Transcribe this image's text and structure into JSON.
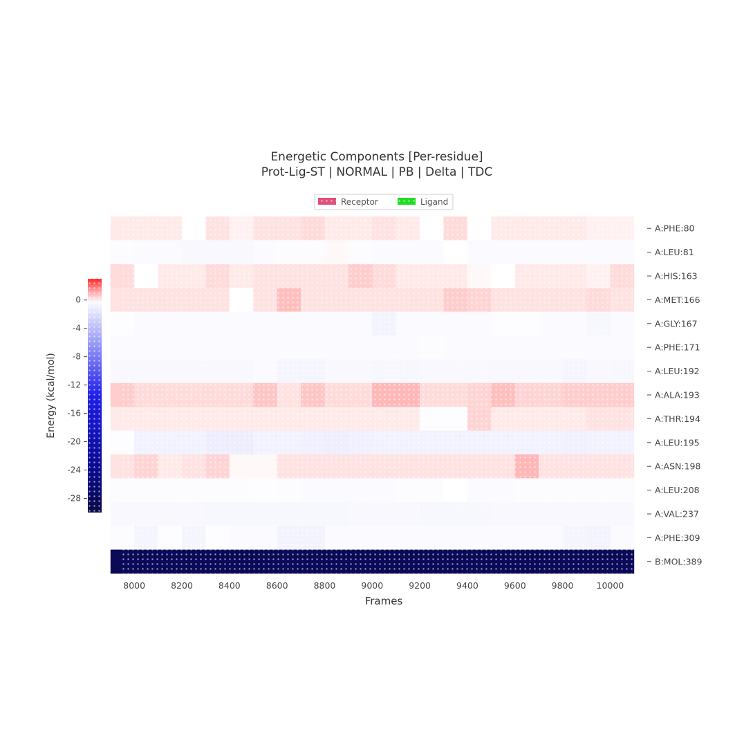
{
  "chart_data": {
    "type": "heatmap",
    "title_line1": "Energetic Components [Per-residue]",
    "title_line2": "Prot-Lig-ST | NORMAL | PB | Delta | TDC",
    "xlabel": "Frames",
    "ylabel": "Energy (kcal/mol)",
    "legend": [
      {
        "label": "Receptor",
        "color": "#e0507a"
      },
      {
        "label": "Ligand",
        "color": "#22dd22"
      }
    ],
    "legend_position": "top-center",
    "x_frames": [
      7950,
      8050,
      8150,
      8250,
      8350,
      8450,
      8550,
      8650,
      8750,
      8850,
      8950,
      9050,
      9150,
      9250,
      9350,
      9450,
      9550,
      9650,
      9750,
      9850,
      9950,
      10050
    ],
    "x_ticks": [
      8000,
      8200,
      8400,
      8600,
      8800,
      9000,
      9200,
      9400,
      9600,
      9800,
      10000
    ],
    "x_range": [
      7950,
      10150
    ],
    "residues": [
      "A:PHE:80",
      "A:LEU:81",
      "A:HIS:163",
      "A:MET:166",
      "A:GLY:167",
      "A:PHE:171",
      "A:LEU:192",
      "A:ALA:193",
      "A:THR:194",
      "A:LEU:195",
      "A:ASN:198",
      "A:LEU:208",
      "A:VAL:237",
      "A:PHE:309",
      "B:MOL:389"
    ],
    "residue_groups": [
      "Receptor",
      "Receptor",
      "Receptor",
      "Receptor",
      "Receptor",
      "Receptor",
      "Receptor",
      "Receptor",
      "Receptor",
      "Receptor",
      "Receptor",
      "Receptor",
      "Receptor",
      "Receptor",
      "Ligand"
    ],
    "values": [
      [
        0.3,
        0.3,
        0.3,
        0.0,
        0.4,
        0.2,
        0.4,
        0.4,
        0.5,
        0.3,
        0.3,
        0.4,
        0.3,
        0.0,
        0.5,
        0.0,
        0.3,
        0.3,
        0.3,
        0.3,
        0.2,
        0.2
      ],
      [
        -0.2,
        -0.3,
        -0.3,
        -0.4,
        -0.4,
        -0.4,
        -0.3,
        -0.2,
        -0.2,
        0.1,
        -0.2,
        -0.3,
        -0.3,
        -0.3,
        0.0,
        -0.3,
        -0.3,
        -0.3,
        -0.3,
        -0.3,
        -0.3,
        -0.3
      ],
      [
        0.5,
        0.0,
        0.3,
        0.3,
        0.5,
        0.3,
        0.4,
        0.4,
        0.4,
        0.4,
        0.7,
        0.5,
        0.3,
        0.3,
        0.3,
        0.1,
        0.0,
        0.3,
        0.3,
        0.3,
        0.2,
        0.5
      ],
      [
        0.4,
        0.4,
        0.4,
        0.4,
        0.4,
        0.0,
        0.4,
        0.9,
        0.4,
        0.4,
        0.4,
        0.4,
        0.4,
        0.4,
        0.7,
        0.6,
        0.4,
        0.4,
        0.4,
        0.4,
        0.5,
        0.4
      ],
      [
        -0.1,
        -0.3,
        -0.3,
        -0.3,
        -0.3,
        -0.3,
        -0.3,
        -0.3,
        -0.3,
        -0.3,
        -0.3,
        -0.7,
        -0.3,
        -0.3,
        -0.3,
        -0.3,
        -0.1,
        -0.1,
        -0.3,
        -0.3,
        -0.5,
        -0.3
      ],
      [
        -0.3,
        -0.3,
        -0.3,
        -0.3,
        -0.3,
        -0.3,
        -0.3,
        -0.3,
        -0.3,
        -0.3,
        -0.3,
        -0.3,
        -0.3,
        -0.2,
        -0.3,
        -0.3,
        -0.3,
        -0.3,
        -0.3,
        -0.3,
        -0.3,
        -0.3
      ],
      [
        -0.4,
        -0.4,
        -0.4,
        -0.4,
        -0.4,
        -0.4,
        -0.3,
        -0.6,
        -0.6,
        -0.4,
        -0.4,
        -0.5,
        -0.5,
        -0.4,
        -0.4,
        -0.4,
        -0.4,
        -0.4,
        -0.4,
        -0.6,
        -0.4,
        -0.5
      ],
      [
        0.7,
        0.5,
        0.5,
        0.5,
        0.5,
        0.5,
        0.8,
        0.4,
        0.8,
        0.5,
        0.5,
        1.0,
        1.0,
        0.5,
        0.5,
        0.6,
        0.9,
        0.6,
        0.6,
        0.7,
        0.7,
        0.7
      ],
      [
        0.3,
        0.3,
        0.3,
        0.3,
        0.3,
        0.3,
        0.3,
        0.3,
        0.3,
        0.3,
        0.3,
        0.3,
        0.3,
        -0.1,
        -0.1,
        0.6,
        0.3,
        0.3,
        0.3,
        0.3,
        0.4,
        0.4
      ],
      [
        -0.1,
        -0.8,
        -0.8,
        -0.8,
        -1.1,
        -1.1,
        -0.8,
        -0.8,
        -0.9,
        -1.0,
        -0.9,
        -0.8,
        -0.8,
        -0.8,
        -0.8,
        -0.8,
        -0.8,
        -0.8,
        -0.8,
        -0.9,
        -0.8,
        -0.8
      ],
      [
        0.4,
        0.6,
        0.3,
        0.4,
        0.6,
        0.1,
        0.1,
        0.4,
        0.4,
        0.4,
        0.4,
        0.4,
        0.4,
        0.4,
        0.4,
        0.4,
        0.4,
        1.0,
        0.4,
        0.4,
        0.4,
        0.4
      ],
      [
        -0.2,
        -0.2,
        -0.2,
        -0.2,
        -0.2,
        -0.2,
        -0.1,
        -0.2,
        -0.3,
        -0.3,
        -0.3,
        -0.3,
        -0.2,
        -0.2,
        0.0,
        -0.3,
        -0.3,
        -0.2,
        -0.2,
        -0.2,
        -0.2,
        -0.2
      ],
      [
        -0.4,
        -0.4,
        -0.4,
        -0.4,
        -0.5,
        -0.5,
        -0.5,
        -0.5,
        -0.5,
        -0.5,
        -0.4,
        -0.4,
        -0.4,
        -0.5,
        -0.5,
        -0.5,
        -0.4,
        -0.4,
        -0.4,
        -0.4,
        -0.4,
        -0.4
      ],
      [
        -0.2,
        -0.6,
        -0.1,
        -0.6,
        -0.1,
        -0.3,
        -0.3,
        -0.7,
        -0.7,
        -0.3,
        -0.3,
        -0.3,
        -0.3,
        -0.3,
        -0.3,
        -0.3,
        -0.3,
        -0.3,
        -0.3,
        -0.6,
        -0.7,
        -0.3
      ],
      [
        -28.5,
        -28.5,
        -28.5,
        -28.5,
        -28.5,
        -28.5,
        -28.5,
        -28.5,
        -28.5,
        -28.5,
        -28.5,
        -28.5,
        -28.5,
        -28.5,
        -28.5,
        -28.5,
        -28.5,
        -28.5,
        -28.5,
        -28.5,
        -28.5,
        -28.5
      ]
    ],
    "colorbar": {
      "label": "Energy (kcal/mol)",
      "range": [
        -30,
        3
      ],
      "ticks": [
        0,
        -4,
        -8,
        -12,
        -16,
        -20,
        -24,
        -28
      ],
      "colormap": "seismic (navy - blue - white - red)"
    }
  }
}
